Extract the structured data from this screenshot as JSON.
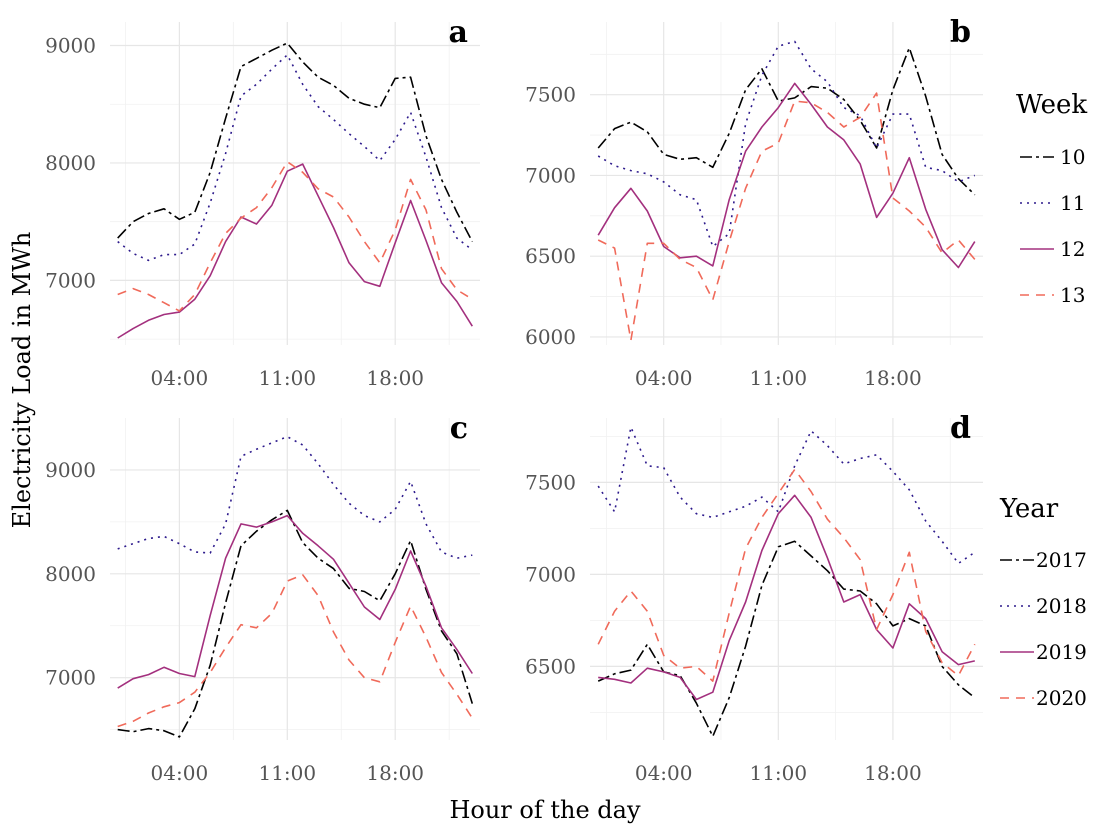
{
  "colors": {
    "c1": "#000000",
    "c2": "#2d1a8c",
    "c3": "#a3307e",
    "c4": "#f06a5a"
  },
  "labels": {
    "xlabel": "Hour of the day",
    "ylabel": "Electricity Load in MWh"
  },
  "legends": [
    {
      "title": "Week",
      "entries": [
        "10",
        "11",
        "12",
        "13"
      ]
    },
    {
      "title": "Year",
      "entries": [
        "2017",
        "2018",
        "2019",
        "2020"
      ]
    }
  ],
  "chart_data": [
    {
      "type": "line",
      "label": "a",
      "x_ticks": [
        "04:00",
        "11:00",
        "18:00"
      ],
      "x_tick_values": [
        4,
        11,
        18
      ],
      "xlim": [
        -0.5,
        23.5
      ],
      "y_ticks": [
        7000,
        8000,
        9000
      ],
      "ylim": [
        6450,
        9200
      ],
      "x": [
        0,
        1,
        2,
        3,
        4,
        5,
        6,
        7,
        8,
        9,
        10,
        11,
        12,
        13,
        14,
        15,
        16,
        17,
        18,
        19,
        20,
        21,
        22,
        23
      ],
      "series": [
        {
          "name": "10",
          "values": [
            7360,
            7500,
            7570,
            7610,
            7520,
            7580,
            7920,
            8380,
            8820,
            8890,
            8960,
            9020,
            8860,
            8730,
            8660,
            8550,
            8500,
            8470,
            8720,
            8730,
            8230,
            7860,
            7580,
            7330
          ]
        },
        {
          "name": "11",
          "values": [
            7330,
            7230,
            7170,
            7220,
            7220,
            7310,
            7660,
            8080,
            8570,
            8670,
            8800,
            8920,
            8670,
            8480,
            8370,
            8250,
            8140,
            8020,
            8200,
            8430,
            8050,
            7620,
            7360,
            7260
          ]
        },
        {
          "name": "12",
          "values": [
            6510,
            6590,
            6660,
            6710,
            6730,
            6840,
            7040,
            7330,
            7540,
            7480,
            7640,
            7930,
            7990,
            7720,
            7450,
            7150,
            6990,
            6950,
            7320,
            7680,
            7340,
            6980,
            6820,
            6610
          ]
        },
        {
          "name": "13",
          "values": [
            6880,
            6930,
            6880,
            6810,
            6740,
            6880,
            7150,
            7400,
            7530,
            7620,
            7790,
            8010,
            7920,
            7780,
            7710,
            7540,
            7330,
            7150,
            7430,
            7860,
            7600,
            7100,
            6920,
            6840
          ]
        }
      ]
    },
    {
      "type": "line",
      "label": "b",
      "x_ticks": [
        "04:00",
        "11:00",
        "18:00"
      ],
      "x_tick_values": [
        4,
        11,
        18
      ],
      "xlim": [
        -0.5,
        23.5
      ],
      "y_ticks": [
        6000,
        6500,
        7000,
        7500
      ],
      "ylim": [
        5950,
        7950
      ],
      "x": [
        0,
        1,
        2,
        3,
        4,
        5,
        6,
        7,
        8,
        9,
        10,
        11,
        12,
        13,
        14,
        15,
        16,
        17,
        18,
        19,
        20,
        21,
        22,
        23
      ],
      "series": [
        {
          "name": "10",
          "values": [
            7170,
            7290,
            7330,
            7270,
            7130,
            7100,
            7110,
            7050,
            7260,
            7530,
            7660,
            7460,
            7480,
            7550,
            7540,
            7470,
            7340,
            7170,
            7530,
            7790,
            7490,
            7130,
            6980,
            6880
          ]
        },
        {
          "name": "11",
          "values": [
            7120,
            7060,
            7030,
            7010,
            6960,
            6880,
            6850,
            6560,
            6640,
            7320,
            7620,
            7800,
            7830,
            7660,
            7580,
            7420,
            7370,
            7170,
            7380,
            7380,
            7050,
            7030,
            6960,
            7000
          ]
        },
        {
          "name": "12",
          "values": [
            6630,
            6800,
            6920,
            6780,
            6560,
            6490,
            6500,
            6440,
            6850,
            7150,
            7300,
            7420,
            7570,
            7440,
            7300,
            7220,
            7070,
            6740,
            6890,
            7110,
            6790,
            6540,
            6430,
            6590
          ]
        },
        {
          "name": "13",
          "values": [
            6600,
            6550,
            5980,
            6580,
            6580,
            6480,
            6430,
            6230,
            6590,
            6920,
            7150,
            7200,
            7460,
            7450,
            7390,
            7300,
            7360,
            7510,
            6860,
            6780,
            6680,
            6520,
            6600,
            6480
          ]
        }
      ]
    },
    {
      "type": "line",
      "label": "c",
      "x_ticks": [
        "04:00",
        "11:00",
        "18:00"
      ],
      "x_tick_values": [
        4,
        11,
        18
      ],
      "xlim": [
        -0.5,
        23.5
      ],
      "y_ticks": [
        7000,
        8000,
        9000
      ],
      "ylim": [
        6400,
        9500
      ],
      "x": [
        0,
        1,
        2,
        3,
        4,
        5,
        6,
        7,
        8,
        9,
        10,
        11,
        12,
        13,
        14,
        15,
        16,
        17,
        18,
        19,
        20,
        21,
        22,
        23
      ],
      "series": [
        {
          "name": "2017",
          "values": [
            6500,
            6480,
            6510,
            6490,
            6430,
            6700,
            7120,
            7720,
            8270,
            8410,
            8520,
            8610,
            8300,
            8150,
            8050,
            7860,
            7830,
            7740,
            8000,
            8320,
            7850,
            7450,
            7230,
            6750
          ]
        },
        {
          "name": "2018",
          "values": [
            8240,
            8290,
            8340,
            8360,
            8290,
            8210,
            8200,
            8480,
            9130,
            9200,
            9260,
            9320,
            9240,
            9060,
            8860,
            8680,
            8560,
            8500,
            8620,
            8890,
            8480,
            8210,
            8150,
            8180
          ]
        },
        {
          "name": "2019",
          "values": [
            6900,
            6990,
            7030,
            7100,
            7040,
            7010,
            7600,
            8150,
            8480,
            8450,
            8500,
            8560,
            8390,
            8270,
            8140,
            7910,
            7680,
            7560,
            7850,
            8220,
            7880,
            7480,
            7270,
            7040
          ]
        },
        {
          "name": "2020",
          "values": [
            6530,
            6580,
            6660,
            6720,
            6760,
            6860,
            7050,
            7290,
            7510,
            7480,
            7620,
            7930,
            7990,
            7790,
            7440,
            7170,
            7000,
            6960,
            7340,
            7690,
            7390,
            7050,
            6840,
            6610
          ]
        }
      ]
    },
    {
      "type": "line",
      "label": "d",
      "x_ticks": [
        "04:00",
        "11:00",
        "18:00"
      ],
      "x_tick_values": [
        4,
        11,
        18
      ],
      "xlim": [
        -0.5,
        23.5
      ],
      "y_ticks": [
        6500,
        7000,
        7500
      ],
      "ylim": [
        6100,
        7850
      ],
      "x": [
        0,
        1,
        2,
        3,
        4,
        5,
        6,
        7,
        8,
        9,
        10,
        11,
        12,
        13,
        14,
        15,
        16,
        17,
        18,
        19,
        20,
        21,
        22,
        23
      ],
      "series": [
        {
          "name": "2017",
          "values": [
            6420,
            6460,
            6480,
            6620,
            6470,
            6450,
            6300,
            6120,
            6330,
            6610,
            6940,
            7150,
            7180,
            7100,
            7020,
            6920,
            6910,
            6840,
            6720,
            6760,
            6720,
            6500,
            6400,
            6330
          ]
        },
        {
          "name": "2018",
          "values": [
            7480,
            7340,
            7800,
            7590,
            7580,
            7420,
            7330,
            7310,
            7340,
            7370,
            7420,
            7340,
            7590,
            7780,
            7700,
            7600,
            7630,
            7650,
            7560,
            7460,
            7290,
            7180,
            7060,
            7120
          ]
        },
        {
          "name": "2019",
          "values": [
            6440,
            6430,
            6410,
            6490,
            6470,
            6440,
            6320,
            6360,
            6640,
            6850,
            7130,
            7330,
            7430,
            7310,
            7090,
            6850,
            6890,
            6700,
            6600,
            6840,
            6760,
            6580,
            6510,
            6530
          ]
        },
        {
          "name": "2020",
          "values": [
            6620,
            6800,
            6910,
            6800,
            6560,
            6490,
            6500,
            6420,
            6790,
            7140,
            7310,
            7440,
            7570,
            7450,
            7300,
            7200,
            7080,
            6700,
            6890,
            7120,
            6690,
            6520,
            6450,
            6620
          ]
        }
      ]
    }
  ]
}
